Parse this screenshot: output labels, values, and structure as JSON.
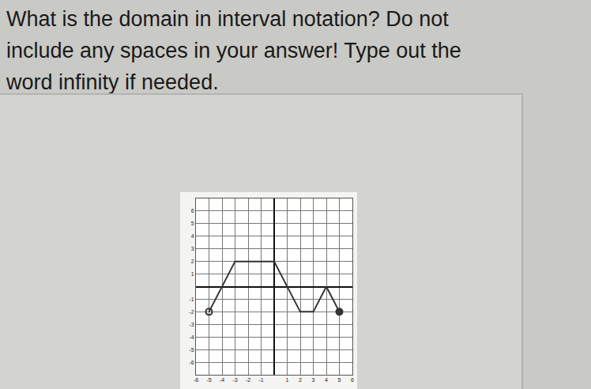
{
  "question": [
    "What is the domain in interval notation? Do not",
    "include any spaces in your answer! Type out the",
    "word infinity if needed."
  ],
  "chart_data": {
    "type": "line",
    "xlim": [
      -6,
      6
    ],
    "ylim": [
      -7,
      7
    ],
    "xticks": [
      -6,
      -5,
      -4,
      -3,
      -2,
      -1,
      1,
      2,
      3,
      4,
      5,
      6
    ],
    "yticks": [
      -6,
      -5,
      -4,
      -3,
      -2,
      -1,
      1,
      2,
      3,
      4,
      5,
      6
    ],
    "grid": true,
    "series": [
      {
        "type": "line",
        "color": "#333333",
        "x": [
          -5,
          -3,
          0,
          2,
          3,
          4,
          5
        ],
        "values": [
          -2,
          2,
          2,
          -2,
          -2,
          0,
          -2
        ]
      },
      {
        "type": "scatter",
        "marker": "open",
        "color": "#333333",
        "x": [
          -5
        ],
        "values": [
          -2
        ]
      },
      {
        "type": "scatter",
        "marker": "closed",
        "color": "#333333",
        "x": [
          5
        ],
        "values": [
          -2
        ]
      }
    ]
  }
}
